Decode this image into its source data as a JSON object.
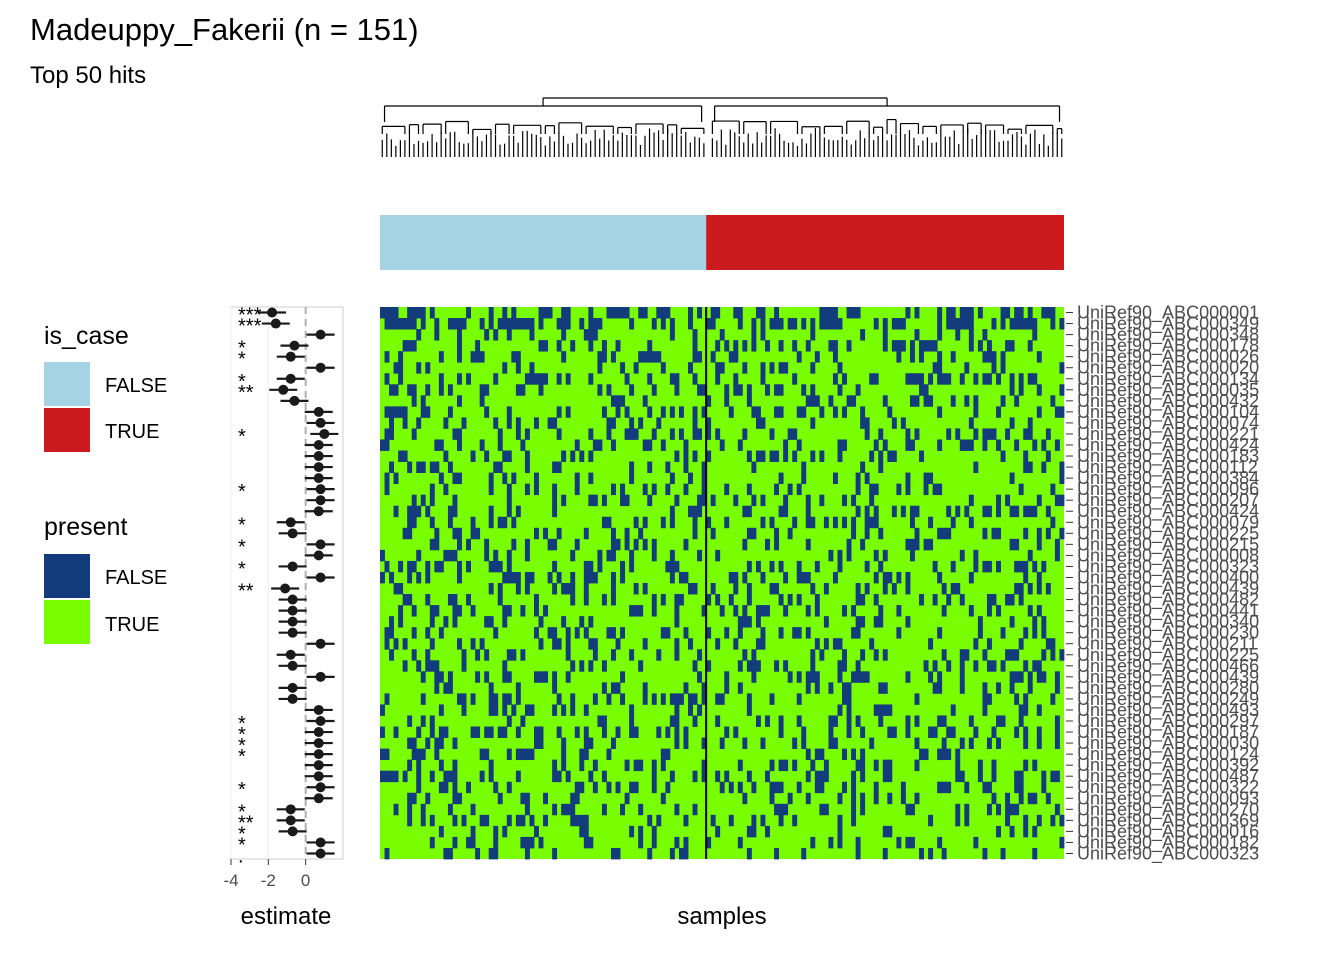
{
  "title": "Madeuppy_Fakerii (n = 151)",
  "subtitle": "Top 50 hits",
  "colors": {
    "is_case_false": "#a6d4e4",
    "is_case_true": "#cb1b1e",
    "present_false": "#133c7c",
    "present_true": "#78fe00",
    "split_line": "#000000",
    "estimate_point": "#1a1a1a",
    "zero_line": "#b0b0b0"
  },
  "legend": {
    "is_case": {
      "title": "is_case",
      "items": [
        {
          "label": "FALSE",
          "color": "#a6d4e4"
        },
        {
          "label": "TRUE",
          "color": "#cb1b1e"
        }
      ]
    },
    "present": {
      "title": "present",
      "items": [
        {
          "label": "FALSE",
          "color": "#133c7c"
        },
        {
          "label": "TRUE",
          "color": "#78fe00"
        }
      ]
    }
  },
  "chart_data": [
    {
      "type": "scatter",
      "xlabel": "estimate",
      "ylabel": "",
      "xlim": [
        -4,
        2
      ],
      "xticks": [
        "-4",
        "-2",
        "0"
      ],
      "grid": true,
      "zero_line": true,
      "estimates": [
        -1.8,
        -1.6,
        0.8,
        -0.6,
        -0.8,
        0.8,
        -0.8,
        -1.2,
        -0.6,
        0.7,
        0.8,
        1.0,
        0.7,
        0.7,
        0.7,
        0.7,
        0.8,
        0.8,
        0.7,
        -0.8,
        -0.7,
        0.8,
        0.7,
        -0.7,
        0.8,
        -1.1,
        -0.7,
        -0.7,
        -0.7,
        -0.7,
        0.8,
        -0.8,
        -0.7,
        0.8,
        -0.7,
        -0.7,
        0.7,
        0.8,
        0.7,
        0.7,
        0.7,
        0.7,
        0.7,
        0.8,
        0.7,
        -0.8,
        -0.8,
        -0.7,
        0.8,
        0.8
      ],
      "significance": [
        "***",
        "***",
        "",
        "*",
        "*",
        "",
        "*",
        "**",
        "",
        "",
        "",
        "*",
        "",
        "",
        "",
        "",
        "*",
        "",
        "",
        "*",
        "",
        "*",
        "",
        "*",
        "",
        "**",
        "",
        "",
        "",
        "",
        "",
        "",
        "",
        "",
        "",
        "",
        "",
        "*",
        "*",
        "*",
        "*",
        "",
        "",
        "*",
        "",
        "*",
        "**",
        "*",
        "*",
        "."
      ]
    },
    {
      "type": "heatmap",
      "xlabel": "samples",
      "ylabel": "",
      "n_samples": 151,
      "n_false": 72,
      "n_true": 79,
      "color_scale": {
        "false": "#133c7c",
        "true": "#78fe00"
      },
      "rows": [
        "UniRef90_ABC000001",
        "UniRef90_ABC000349",
        "UniRef90_ABC000348",
        "UniRef90_ABC000178",
        "UniRef90_ABC000026",
        "UniRef90_ABC000020",
        "UniRef90_ABC000134",
        "UniRef90_ABC000035",
        "UniRef90_ABC000432",
        "UniRef90_ABC000104",
        "UniRef90_ABC000074",
        "UniRef90_ABC000221",
        "UniRef90_ABC000424",
        "UniRef90_ABC000183",
        "UniRef90_ABC000112",
        "UniRef90_ABC000384",
        "UniRef90_ABC000096",
        "UniRef90_ABC000207",
        "UniRef90_ABC000424",
        "UniRef90_ABC000079",
        "UniRef90_ABC000225",
        "UniRef90_ABC000215",
        "UniRef90_ABC000008",
        "UniRef90_ABC000323",
        "UniRef90_ABC000400",
        "UniRef90_ABC000439",
        "UniRef90_ABC000482",
        "UniRef90_ABC000441",
        "UniRef90_ABC000340",
        "UniRef90_ABC000230",
        "UniRef90_ABC000211",
        "UniRef90_ABC000225",
        "UniRef90_ABC000466",
        "UniRef90_ABC000439",
        "UniRef90_ABC000280",
        "UniRef90_ABC000249",
        "UniRef90_ABC000493",
        "UniRef90_ABC000297",
        "UniRef90_ABC000187",
        "UniRef90_ABC000030",
        "UniRef90_ABC000124",
        "UniRef90_ABC000392",
        "UniRef90_ABC000487",
        "UniRef90_ABC000322",
        "UniRef90_ABC000093",
        "UniRef90_ABC000270",
        "UniRef90_ABC000369",
        "UniRef90_ABC000016",
        "UniRef90_ABC000182",
        "UniRef90_ABC000323"
      ]
    }
  ]
}
